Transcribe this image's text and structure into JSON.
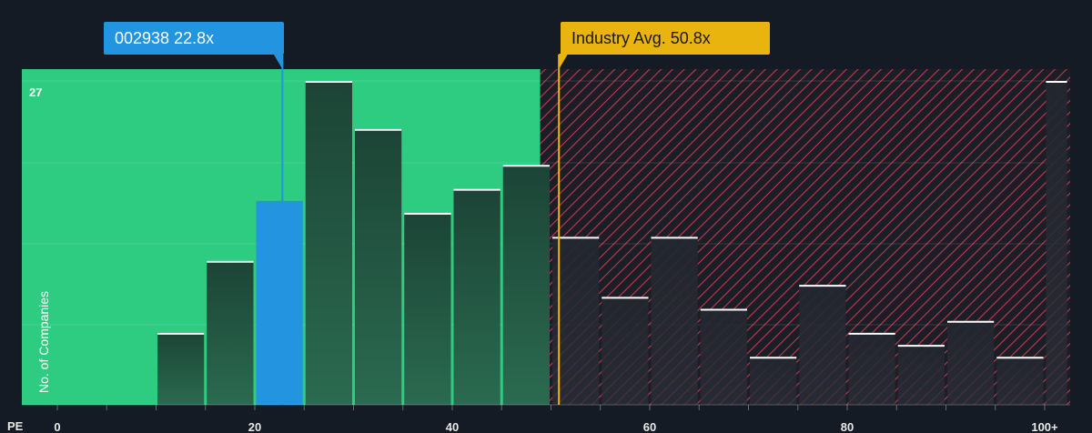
{
  "company": {
    "label": "002938 22.8x",
    "value": 22.8,
    "color": "#2394e0"
  },
  "industry": {
    "label": "Industry Avg. 50.8x",
    "value": 50.8,
    "color": "#eab40f"
  },
  "colors": {
    "fair_zone": "#2ecc80",
    "expensive_zone": "#c0394a",
    "background": "#151b24"
  },
  "chart_data": {
    "type": "bar",
    "xlabel": "PE",
    "ylabel": "No. of Companies",
    "xlim": [
      0,
      102
    ],
    "ylim": [
      0,
      27
    ],
    "y_max_label": "27",
    "x_ticks": [
      {
        "value": 0,
        "label": "0"
      },
      {
        "value": 20,
        "label": "20"
      },
      {
        "value": 40,
        "label": "40"
      },
      {
        "value": 60,
        "label": "60"
      },
      {
        "value": 80,
        "label": "80"
      },
      {
        "value": 100,
        "label": "100+"
      }
    ],
    "bins": [
      {
        "x0": 10,
        "x1": 15,
        "value": 6
      },
      {
        "x0": 15,
        "x1": 20,
        "value": 12
      },
      {
        "x0": 20,
        "x1": 25,
        "value": 17,
        "highlight": true
      },
      {
        "x0": 25,
        "x1": 30,
        "value": 27
      },
      {
        "x0": 30,
        "x1": 35,
        "value": 23
      },
      {
        "x0": 35,
        "x1": 40,
        "value": 16
      },
      {
        "x0": 40,
        "x1": 45,
        "value": 18
      },
      {
        "x0": 45,
        "x1": 50,
        "value": 20
      },
      {
        "x0": 50,
        "x1": 55,
        "value": 14
      },
      {
        "x0": 55,
        "x1": 60,
        "value": 9
      },
      {
        "x0": 60,
        "x1": 65,
        "value": 14
      },
      {
        "x0": 65,
        "x1": 70,
        "value": 8
      },
      {
        "x0": 70,
        "x1": 75,
        "value": 4
      },
      {
        "x0": 75,
        "x1": 80,
        "value": 10
      },
      {
        "x0": 80,
        "x1": 85,
        "value": 6
      },
      {
        "x0": 85,
        "x1": 90,
        "value": 5
      },
      {
        "x0": 90,
        "x1": 95,
        "value": 7
      },
      {
        "x0": 95,
        "x1": 100,
        "value": 4
      },
      {
        "x0": 100,
        "x1": 102.4,
        "value": 27
      }
    ],
    "fair_zone_end": 49
  }
}
